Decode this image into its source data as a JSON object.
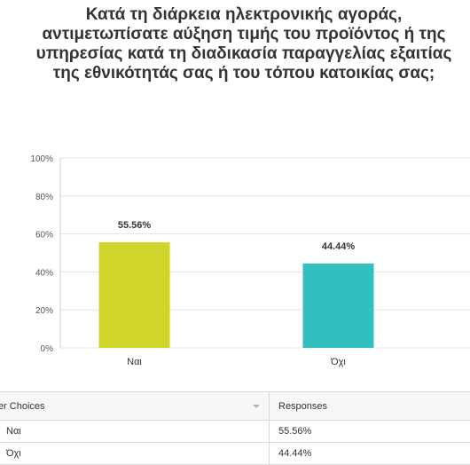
{
  "question": "Κατά τη διάρκεια ηλεκτρονικής αγοράς, αντιμετωπίσατε αύξηση τιμής του προϊόντος ή της υπηρεσίας κατά τη διαδικασία παραγγελίας εξαιτίας της εθνικότητάς σας ή του τόπου κατοικίας σας;",
  "chart_data": {
    "type": "bar",
    "categories": [
      "Ναι",
      "Όχι"
    ],
    "values": [
      55.56,
      44.44
    ],
    "data_labels": [
      "55.56%",
      "44.44%"
    ],
    "bar_colors": [
      "#d0d52a",
      "#33bebf"
    ],
    "ylim": [
      0,
      100
    ],
    "yticks": [
      0,
      20,
      40,
      60,
      80,
      100
    ],
    "ytick_labels": [
      "0%",
      "20%",
      "40%",
      "60%",
      "80%",
      "100%"
    ],
    "grid": true,
    "xlabel": "",
    "ylabel": ""
  },
  "table": {
    "headers": [
      "wer Choices",
      "Responses"
    ],
    "rows": [
      {
        "choice": "Ναι",
        "response": "55.56%"
      },
      {
        "choice": "Όχι",
        "response": "44.44%"
      }
    ]
  }
}
